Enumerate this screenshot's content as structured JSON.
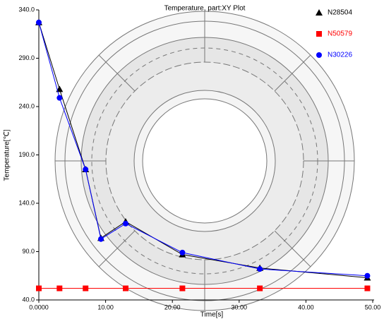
{
  "chart_data": {
    "type": "line",
    "title": "Temperature, part:XY Plot",
    "x_label": "Time[s]",
    "y_label": "Temperature[℃]",
    "xlim": [
      0,
      50
    ],
    "ylim": [
      40,
      340
    ],
    "xticks": [
      {
        "value": 0,
        "label": "0.0000"
      },
      {
        "value": 10,
        "label": "10.00"
      },
      {
        "value": 20,
        "label": "20.00"
      },
      {
        "value": 30,
        "label": "30.00"
      },
      {
        "value": 40,
        "label": "40.00"
      },
      {
        "value": 50,
        "label": "50.00"
      }
    ],
    "yticks": [
      {
        "value": 40,
        "label": "40.0"
      },
      {
        "value": 90,
        "label": "90.0"
      },
      {
        "value": 140,
        "label": "140.0"
      },
      {
        "value": 190,
        "label": "190.0"
      },
      {
        "value": 240,
        "label": "240.0"
      },
      {
        "value": 290,
        "label": "290.0"
      },
      {
        "value": 340,
        "label": "340.0"
      }
    ],
    "series": [
      {
        "name": "N28504",
        "color": "#000000",
        "marker": "triangle",
        "x": [
          0,
          3.1,
          7,
          9.3,
          13,
          21.5,
          33.1,
          49.2
        ],
        "values": [
          327,
          258,
          175,
          104,
          121,
          87,
          73,
          63
        ]
      },
      {
        "name": "N50579",
        "color": "#ff0000",
        "marker": "square",
        "x": [
          0,
          3.1,
          7,
          13,
          21.5,
          33.1,
          49.2
        ],
        "values": [
          52,
          52,
          52,
          52,
          52,
          52,
          52
        ]
      },
      {
        "name": "N30226",
        "color": "#0000ff",
        "marker": "circle",
        "x": [
          0,
          3.1,
          7,
          9.3,
          13,
          21.5,
          33.1,
          49.2
        ],
        "values": [
          327,
          249,
          175,
          103,
          119,
          89,
          72,
          65
        ]
      }
    ]
  }
}
